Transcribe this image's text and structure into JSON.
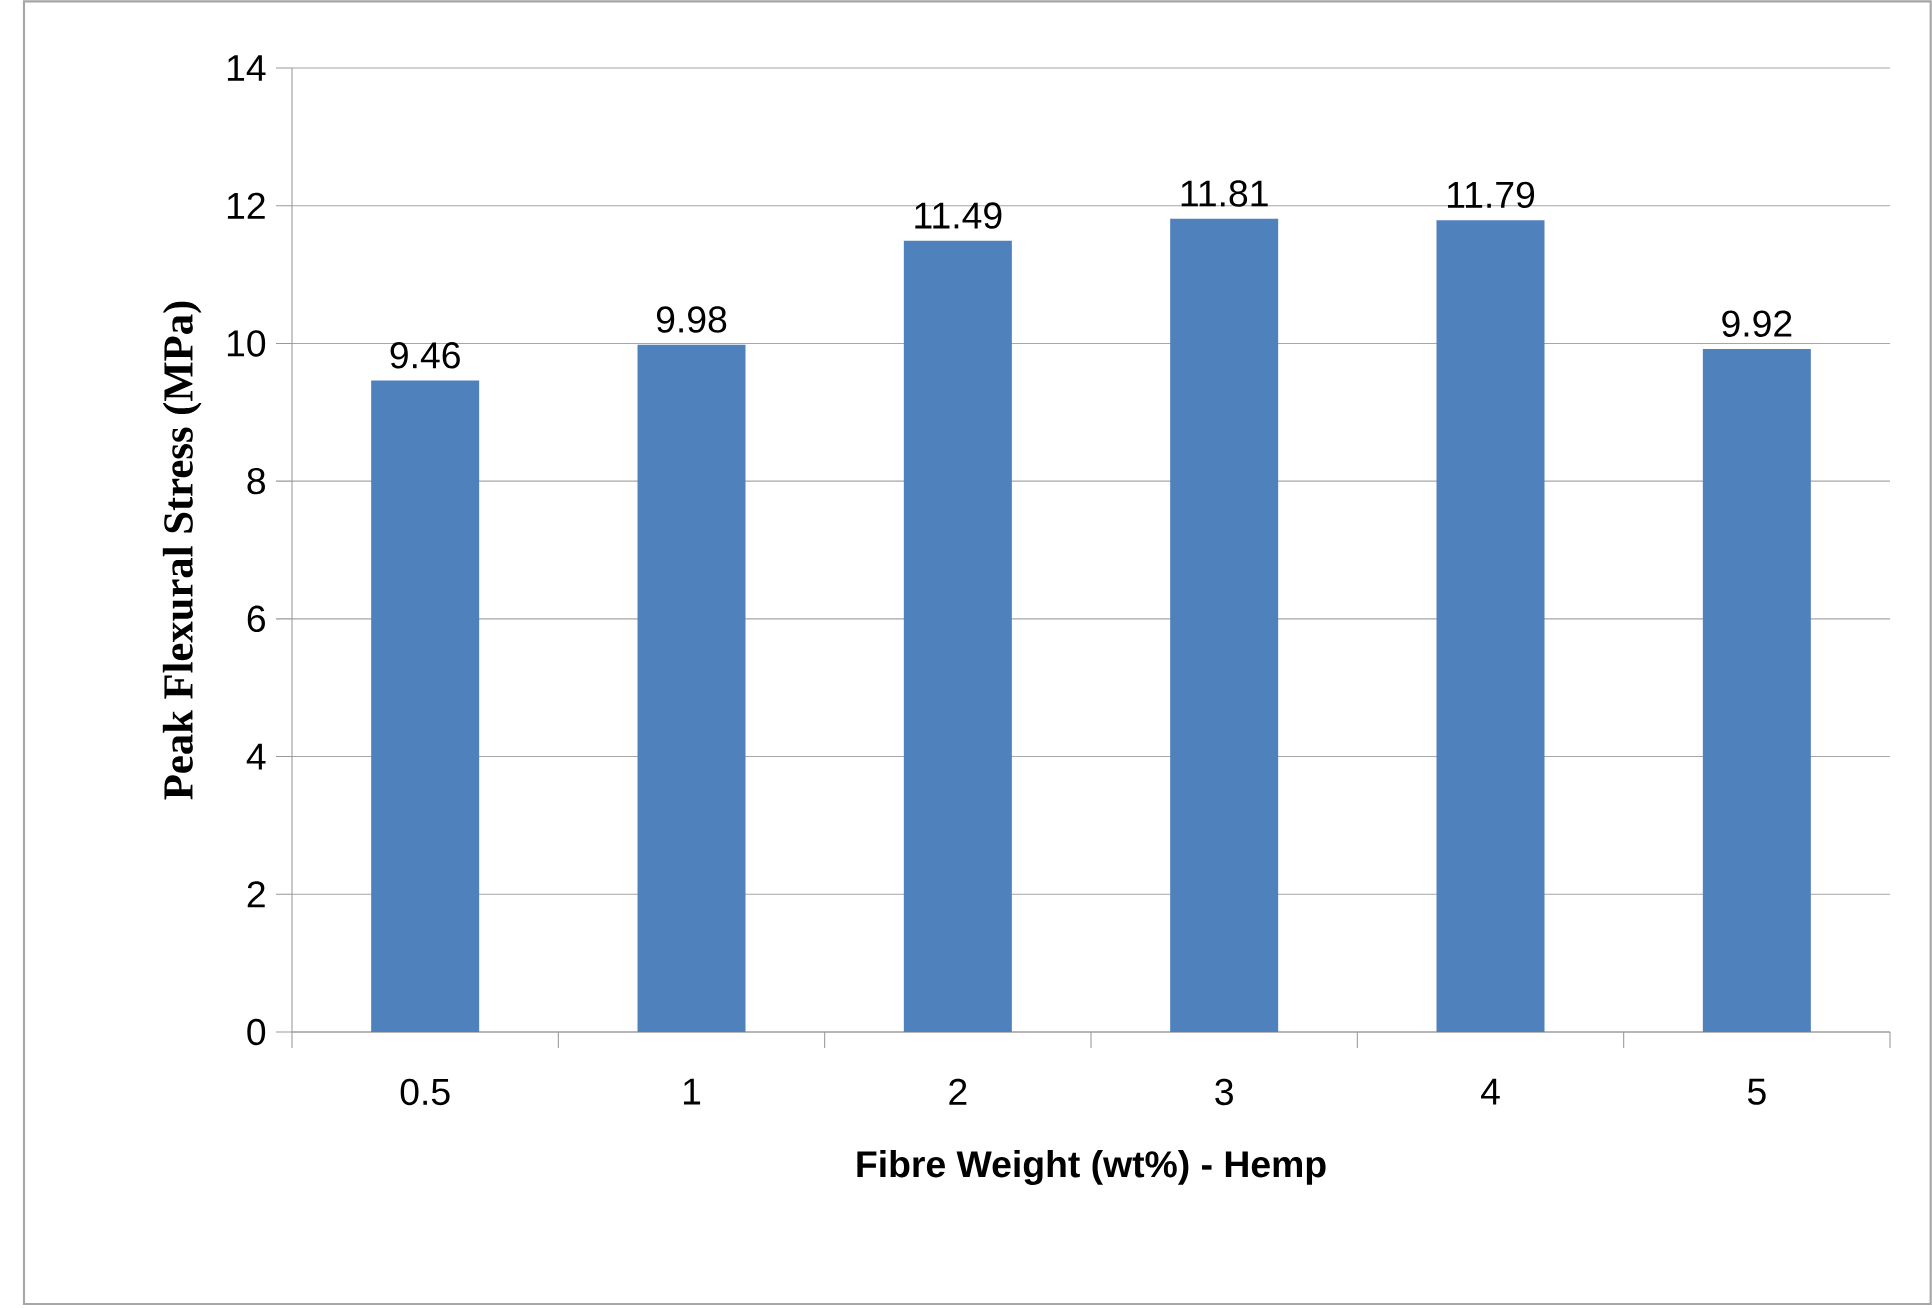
{
  "chart_data": {
    "type": "bar",
    "xlabel": "Fibre Weight (wt%) - Hemp",
    "ylabel": "Peak Flexural Stress (MPa)",
    "categories": [
      "0.5",
      "1",
      "2",
      "3",
      "4",
      "5"
    ],
    "values": [
      9.46,
      9.98,
      11.49,
      11.81,
      11.79,
      9.92
    ],
    "color": "#4f81bd",
    "ylim": [
      0,
      14
    ],
    "yticks": [
      0,
      2,
      4,
      6,
      8,
      10,
      12,
      14
    ],
    "grid": "y",
    "data_labels": true
  }
}
